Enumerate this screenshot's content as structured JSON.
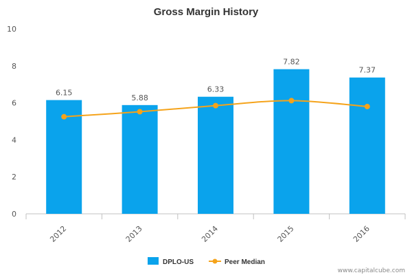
{
  "chart_data": {
    "type": "bar",
    "title": "Gross Margin History",
    "categories": [
      "2012",
      "2013",
      "2014",
      "2015",
      "2016"
    ],
    "series": [
      {
        "name": "DPLO-US",
        "kind": "bar",
        "values": [
          6.15,
          5.88,
          6.33,
          7.82,
          7.37
        ],
        "color": "#0aa3ec"
      },
      {
        "name": "Peer Median",
        "kind": "line",
        "values": [
          5.25,
          5.52,
          5.85,
          6.12,
          5.8
        ],
        "color": "#f5a31a"
      }
    ],
    "data_labels": [
      "6.15",
      "5.88",
      "6.33",
      "7.82",
      "7.37"
    ],
    "y_ticks": [
      "0",
      "2",
      "4",
      "6",
      "8",
      "10"
    ],
    "ylim": [
      0,
      10
    ],
    "xlabel": "",
    "ylabel": "",
    "legend_position": "bottom-center",
    "credit": "www.capitalcube.com"
  }
}
